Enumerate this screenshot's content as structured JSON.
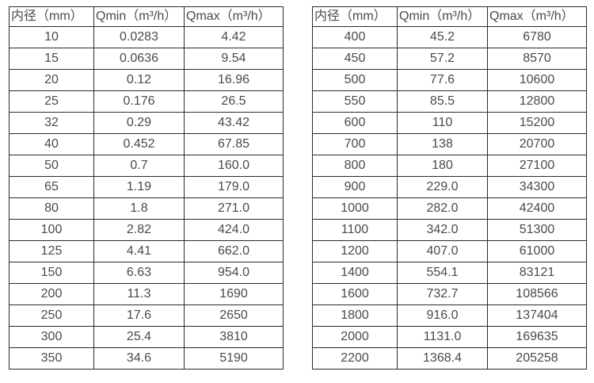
{
  "colors": {
    "border": "#2b2b2b",
    "text": "#4a4a4a",
    "background": "#ffffff"
  },
  "tables": [
    {
      "id": "flow-table-small-diameters",
      "headers": [
        "内径（mm）",
        "Qmin（m³/h）",
        "Qmax（m³/h）"
      ],
      "rows": [
        [
          "10",
          "0.0283",
          "4.42"
        ],
        [
          "15",
          "0.0636",
          "9.54"
        ],
        [
          "20",
          "0.12",
          "16.96"
        ],
        [
          "25",
          "0.176",
          "26.5"
        ],
        [
          "32",
          "0.29",
          "43.42"
        ],
        [
          "40",
          "0.452",
          "67.85"
        ],
        [
          "50",
          "0.7",
          "160.0"
        ],
        [
          "65",
          "1.19",
          "179.0"
        ],
        [
          "80",
          "1.8",
          "271.0"
        ],
        [
          "100",
          "2.82",
          "424.0"
        ],
        [
          "125",
          "4.41",
          "662.0"
        ],
        [
          "150",
          "6.63",
          "954.0"
        ],
        [
          "200",
          "11.3",
          "1690"
        ],
        [
          "250",
          "17.6",
          "2650"
        ],
        [
          "300",
          "25.4",
          "3810"
        ],
        [
          "350",
          "34.6",
          "5190"
        ]
      ]
    },
    {
      "id": "flow-table-large-diameters",
      "headers": [
        "内径（mm）",
        "Qmin（m³/h）",
        "Qmax（m³/h）"
      ],
      "rows": [
        [
          "400",
          "45.2",
          "6780"
        ],
        [
          "450",
          "57.2",
          "8570"
        ],
        [
          "500",
          "77.6",
          "10600"
        ],
        [
          "550",
          "85.5",
          "12800"
        ],
        [
          "600",
          "110",
          "15200"
        ],
        [
          "700",
          "138",
          "20700"
        ],
        [
          "800",
          "180",
          "27100"
        ],
        [
          "900",
          "229.0",
          "34300"
        ],
        [
          "1000",
          "282.0",
          "42400"
        ],
        [
          "1100",
          "342.0",
          "51300"
        ],
        [
          "1200",
          "407.0",
          "61000"
        ],
        [
          "1400",
          "554.1",
          "83121"
        ],
        [
          "1600",
          "732.7",
          "108566"
        ],
        [
          "1800",
          "916.0",
          "137404"
        ],
        [
          "2000",
          "1131.0",
          "169635"
        ],
        [
          "2200",
          "1368.4",
          "205258"
        ]
      ]
    }
  ]
}
